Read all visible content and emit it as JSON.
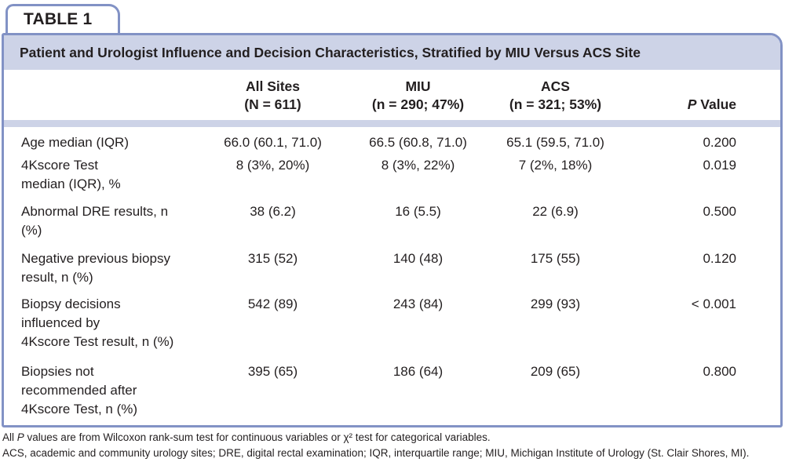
{
  "tab_label": "TABLE 1",
  "title": "Patient and Urologist Influence and Decision Characteristics, Stratified by MIU Versus ACS Site",
  "header": {
    "all_sites_line1": "All Sites",
    "all_sites_line2": "(N = 611)",
    "miu_line1": "MIU",
    "miu_line2": "(n = 290; 47%)",
    "acs_line1": "ACS",
    "acs_line2": "(n = 321; 53%)",
    "p_italic": "P",
    "p_rest": " Value"
  },
  "rows": [
    {
      "label": "Age median (IQR)",
      "all_sites": "66.0 (60.1, 71.0)",
      "miu": "66.5 (60.8, 71.0)",
      "acs": "65.1 (59.5, 71.0)",
      "p_value": "0.200"
    },
    {
      "label": "4Kscore Test\nmedian (IQR), %",
      "all_sites": "8 (3%, 20%)",
      "miu": "8 (3%, 22%)",
      "acs": "7 (2%, 18%)",
      "p_value": "0.019"
    },
    {
      "label": "Abnormal DRE results, n\n(%)",
      "all_sites": "38 (6.2)",
      "miu": "16 (5.5)",
      "acs": "22 (6.9)",
      "p_value": "0.500"
    },
    {
      "label": "Negative previous biopsy\nresult, n (%)",
      "all_sites": "315 (52)",
      "miu": "140 (48)",
      "acs": "175 (55)",
      "p_value": "0.120"
    },
    {
      "label": "Biopsy decisions\ninfluenced by\n4Kscore Test result, n (%)",
      "all_sites": "542 (89)",
      "miu": "243 (84)",
      "acs": "299 (93)",
      "p_value": "< 0.001"
    },
    {
      "label": "Biopsies not\nrecommended after\n4Kscore Test, n (%)",
      "all_sites": "395 (65)",
      "miu": "186 (64)",
      "acs": "209 (65)",
      "p_value": "0.800"
    }
  ],
  "footnotes": {
    "line1_prefix": "All ",
    "line1_italic": "P",
    "line1_rest": " values are from Wilcoxon rank-sum test for continuous variables or χ² test for categorical variables.",
    "line2": "ACS, academic and community urology sites; DRE, digital rectal examination; IQR, interquartile range; MIU, Michigan Institute of Urology (St. Clair Shores, MI)."
  },
  "colors": {
    "band_lavender": "#cdd3e7",
    "border_blue": "#8292c5",
    "text": "#231f20"
  }
}
